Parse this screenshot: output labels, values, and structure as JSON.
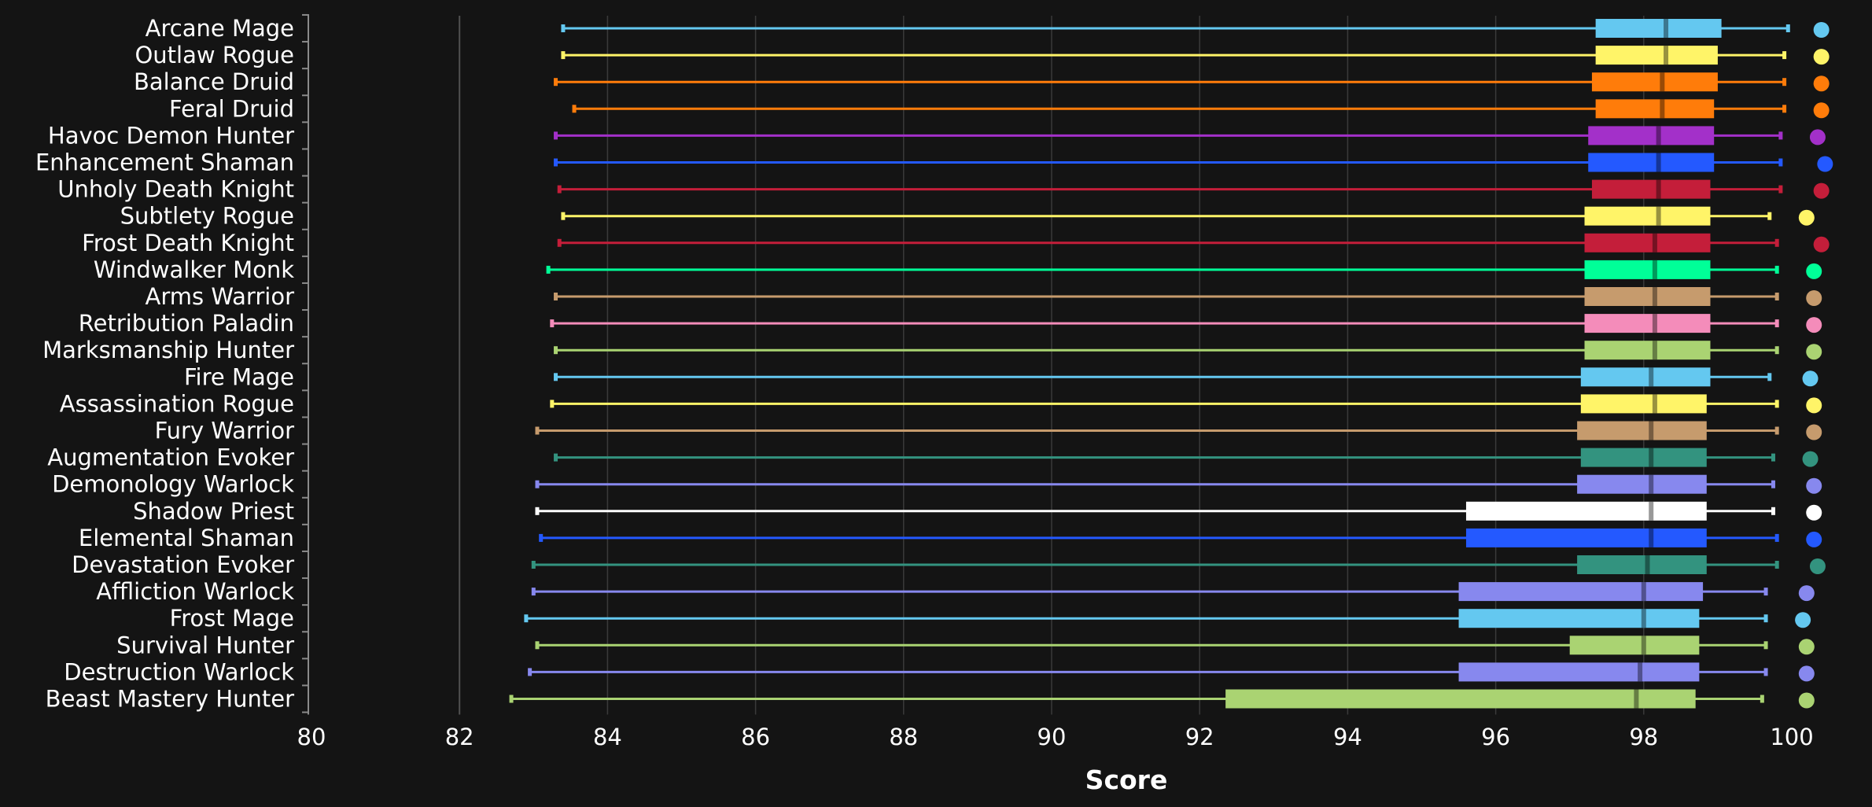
{
  "chart_data": {
    "type": "boxplot",
    "orientation": "horizontal",
    "xlabel": "Score",
    "xlim": [
      80,
      100
    ],
    "xticks": [
      "80",
      "82",
      "84",
      "86",
      "88",
      "90",
      "92",
      "94",
      "96",
      "98",
      "100"
    ],
    "grid": true,
    "colors": {
      "background": "#141414",
      "grid": "#3a3a3a",
      "axis": "#8a8a8a",
      "text": "#ffffff"
    },
    "series": [
      {
        "label": "Arcane Mage",
        "color": "#64c8f0",
        "min": 83.4,
        "q1": 97.35,
        "median": 98.3,
        "q3": 99.05,
        "max": 99.95,
        "marker": 100.4
      },
      {
        "label": "Outlaw Rogue",
        "color": "#fff468",
        "min": 83.4,
        "q1": 97.35,
        "median": 98.3,
        "q3": 99.0,
        "max": 99.9,
        "marker": 100.4
      },
      {
        "label": "Balance Druid",
        "color": "#ff7c0a",
        "min": 83.3,
        "q1": 97.3,
        "median": 98.25,
        "q3": 99.0,
        "max": 99.9,
        "marker": 100.4
      },
      {
        "label": "Feral Druid",
        "color": "#ff7c0a",
        "min": 83.55,
        "q1": 97.35,
        "median": 98.25,
        "q3": 98.95,
        "max": 99.9,
        "marker": 100.4
      },
      {
        "label": "Havoc Demon Hunter",
        "color": "#a330c9",
        "min": 83.3,
        "q1": 97.25,
        "median": 98.2,
        "q3": 98.95,
        "max": 99.85,
        "marker": 100.35
      },
      {
        "label": "Enhancement Shaman",
        "color": "#2459ff",
        "min": 83.3,
        "q1": 97.25,
        "median": 98.2,
        "q3": 98.95,
        "max": 99.85,
        "marker": 100.45
      },
      {
        "label": "Unholy Death Knight",
        "color": "#c41e3a",
        "min": 83.35,
        "q1": 97.3,
        "median": 98.2,
        "q3": 98.9,
        "max": 99.85,
        "marker": 100.4
      },
      {
        "label": "Subtlety Rogue",
        "color": "#fff468",
        "min": 83.4,
        "q1": 97.2,
        "median": 98.2,
        "q3": 98.9,
        "max": 99.7,
        "marker": 100.2
      },
      {
        "label": "Frost Death Knight",
        "color": "#c41e3a",
        "min": 83.35,
        "q1": 97.2,
        "median": 98.15,
        "q3": 98.9,
        "max": 99.8,
        "marker": 100.4
      },
      {
        "label": "Windwalker Monk",
        "color": "#00ff98",
        "min": 83.2,
        "q1": 97.2,
        "median": 98.15,
        "q3": 98.9,
        "max": 99.8,
        "marker": 100.3
      },
      {
        "label": "Arms Warrior",
        "color": "#c69b6d",
        "min": 83.3,
        "q1": 97.2,
        "median": 98.15,
        "q3": 98.9,
        "max": 99.8,
        "marker": 100.3
      },
      {
        "label": "Retribution Paladin",
        "color": "#f48cba",
        "min": 83.25,
        "q1": 97.2,
        "median": 98.15,
        "q3": 98.9,
        "max": 99.8,
        "marker": 100.3
      },
      {
        "label": "Marksmanship Hunter",
        "color": "#aad372",
        "min": 83.3,
        "q1": 97.2,
        "median": 98.15,
        "q3": 98.9,
        "max": 99.8,
        "marker": 100.3
      },
      {
        "label": "Fire Mage",
        "color": "#64c8f0",
        "min": 83.3,
        "q1": 97.15,
        "median": 98.1,
        "q3": 98.9,
        "max": 99.7,
        "marker": 100.25
      },
      {
        "label": "Assassination Rogue",
        "color": "#fff468",
        "min": 83.25,
        "q1": 97.15,
        "median": 98.15,
        "q3": 98.85,
        "max": 99.8,
        "marker": 100.3
      },
      {
        "label": "Fury Warrior",
        "color": "#c69b6d",
        "min": 83.05,
        "q1": 97.1,
        "median": 98.1,
        "q3": 98.85,
        "max": 99.8,
        "marker": 100.3
      },
      {
        "label": "Augmentation Evoker",
        "color": "#33937f",
        "min": 83.3,
        "q1": 97.15,
        "median": 98.1,
        "q3": 98.85,
        "max": 99.75,
        "marker": 100.25
      },
      {
        "label": "Demonology Warlock",
        "color": "#8788ee",
        "min": 83.05,
        "q1": 97.1,
        "median": 98.1,
        "q3": 98.85,
        "max": 99.75,
        "marker": 100.3
      },
      {
        "label": "Shadow Priest",
        "color": "#ffffff",
        "min": 83.05,
        "q1": 95.6,
        "median": 98.1,
        "q3": 98.85,
        "max": 99.75,
        "marker": 100.3
      },
      {
        "label": "Elemental Shaman",
        "color": "#2459ff",
        "min": 83.1,
        "q1": 95.6,
        "median": 98.1,
        "q3": 98.85,
        "max": 99.8,
        "marker": 100.3
      },
      {
        "label": "Devastation Evoker",
        "color": "#33937f",
        "min": 83.0,
        "q1": 97.1,
        "median": 98.05,
        "q3": 98.85,
        "max": 99.8,
        "marker": 100.35
      },
      {
        "label": "Affliction Warlock",
        "color": "#8788ee",
        "min": 83.0,
        "q1": 95.5,
        "median": 98.0,
        "q3": 98.8,
        "max": 99.65,
        "marker": 100.2
      },
      {
        "label": "Frost Mage",
        "color": "#64c8f0",
        "min": 82.9,
        "q1": 95.5,
        "median": 98.0,
        "q3": 98.75,
        "max": 99.65,
        "marker": 100.15
      },
      {
        "label": "Survival Hunter",
        "color": "#aad372",
        "min": 83.05,
        "q1": 97.0,
        "median": 98.0,
        "q3": 98.75,
        "max": 99.65,
        "marker": 100.2
      },
      {
        "label": "Destruction Warlock",
        "color": "#8788ee",
        "min": 82.95,
        "q1": 95.5,
        "median": 97.95,
        "q3": 98.75,
        "max": 99.65,
        "marker": 100.2
      },
      {
        "label": "Beast Mastery Hunter",
        "color": "#aad372",
        "min": 82.7,
        "q1": 92.35,
        "median": 97.9,
        "q3": 98.7,
        "max": 99.6,
        "marker": 100.2
      }
    ]
  }
}
